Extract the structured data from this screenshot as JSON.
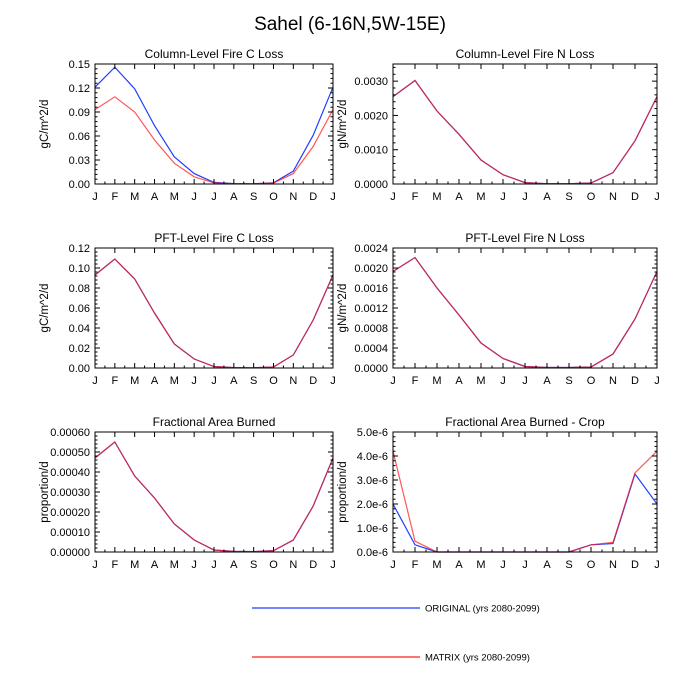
{
  "title": "Sahel (6-16N,5W-15E)",
  "colors": {
    "original": "#1f3fff",
    "matrix": "#ff1f1f",
    "axis": "#000000"
  },
  "legend": [
    {
      "label": "ORIGINAL (yrs 2080-2099)",
      "color": "#1f3fff"
    },
    {
      "label": "MATRIX (yrs 2080-2099)",
      "color": "#ff1f1f"
    }
  ],
  "chart_data": [
    {
      "type": "line",
      "title": "Column-Level Fire C Loss",
      "ylabel": "gC/m^2/d",
      "ylim": [
        0,
        0.15
      ],
      "yticks": [
        "0.00",
        "0.03",
        "0.06",
        "0.09",
        "0.12",
        "0.15"
      ],
      "categories": [
        "J",
        "F",
        "M",
        "A",
        "M",
        "J",
        "J",
        "A",
        "S",
        "O",
        "N",
        "D",
        "J"
      ],
      "series": [
        {
          "name": "ORIGINAL (yrs 2080-2099)",
          "values": [
            0.121,
            0.146,
            0.119,
            0.073,
            0.034,
            0.013,
            0.002,
            0.0005,
            0.0003,
            0.0015,
            0.016,
            0.061,
            0.121
          ]
        },
        {
          "name": "MATRIX (yrs 2080-2099)",
          "values": [
            0.093,
            0.109,
            0.09,
            0.055,
            0.026,
            0.009,
            0.0015,
            0.0004,
            0.0002,
            0.0012,
            0.013,
            0.047,
            0.093
          ]
        }
      ]
    },
    {
      "type": "line",
      "title": "Column-Level Fire N Loss",
      "ylabel": "gN/m^2/d",
      "ylim": [
        0,
        0.0035
      ],
      "yticks": [
        "0.0000",
        "0.0010",
        "0.0020",
        "0.0030"
      ],
      "categories": [
        "J",
        "F",
        "M",
        "A",
        "M",
        "J",
        "J",
        "A",
        "S",
        "O",
        "N",
        "D",
        "J"
      ],
      "series": [
        {
          "name": "ORIGINAL (yrs 2080-2099)",
          "values": [
            0.00255,
            0.00302,
            0.00213,
            0.00145,
            0.0007,
            0.00027,
            4e-05,
            1e-05,
            1e-05,
            3e-05,
            0.00033,
            0.00126,
            0.00255
          ]
        },
        {
          "name": "MATRIX (yrs 2080-2099)",
          "values": [
            0.00255,
            0.00302,
            0.00213,
            0.00145,
            0.0007,
            0.00027,
            4e-05,
            1e-05,
            1e-05,
            3e-05,
            0.00033,
            0.00126,
            0.00255
          ]
        }
      ]
    },
    {
      "type": "line",
      "title": "PFT-Level Fire C Loss",
      "ylabel": "gC/m^2/d",
      "ylim": [
        0,
        0.12
      ],
      "yticks": [
        "0.00",
        "0.02",
        "0.04",
        "0.06",
        "0.08",
        "0.10",
        "0.12"
      ],
      "categories": [
        "J",
        "F",
        "M",
        "A",
        "M",
        "J",
        "J",
        "A",
        "S",
        "O",
        "N",
        "D",
        "J"
      ],
      "series": [
        {
          "name": "ORIGINAL (yrs 2080-2099)",
          "values": [
            0.093,
            0.109,
            0.089,
            0.055,
            0.024,
            0.009,
            0.0015,
            0.0004,
            0.0002,
            0.001,
            0.013,
            0.048,
            0.093
          ]
        },
        {
          "name": "MATRIX (yrs 2080-2099)",
          "values": [
            0.093,
            0.109,
            0.089,
            0.055,
            0.024,
            0.009,
            0.0015,
            0.0004,
            0.0002,
            0.001,
            0.013,
            0.048,
            0.093
          ]
        }
      ]
    },
    {
      "type": "line",
      "title": "PFT-Level Fire N Loss",
      "ylabel": "gN/m^2/d",
      "ylim": [
        0,
        0.0024
      ],
      "yticks": [
        "0.0000",
        "0.0004",
        "0.0008",
        "0.0012",
        "0.0016",
        "0.0020",
        "0.0024"
      ],
      "categories": [
        "J",
        "F",
        "M",
        "A",
        "M",
        "J",
        "J",
        "A",
        "S",
        "O",
        "N",
        "D",
        "J"
      ],
      "series": [
        {
          "name": "ORIGINAL (yrs 2080-2099)",
          "values": [
            0.00193,
            0.00221,
            0.0016,
            0.00106,
            0.0005,
            0.00019,
            3e-05,
            1e-05,
            1e-05,
            2e-05,
            0.00028,
            0.00098,
            0.00193
          ]
        },
        {
          "name": "MATRIX (yrs 2080-2099)",
          "values": [
            0.00193,
            0.00221,
            0.0016,
            0.00106,
            0.0005,
            0.00019,
            3e-05,
            1e-05,
            1e-05,
            2e-05,
            0.00028,
            0.00098,
            0.00193
          ]
        }
      ]
    },
    {
      "type": "line",
      "title": "Fractional Area Burned",
      "ylabel": "proportion/d",
      "ylim": [
        0,
        0.0006
      ],
      "yticks": [
        "0.00000",
        "0.00010",
        "0.00020",
        "0.00030",
        "0.00040",
        "0.00050",
        "0.00060"
      ],
      "categories": [
        "J",
        "F",
        "M",
        "A",
        "M",
        "J",
        "J",
        "A",
        "S",
        "O",
        "N",
        "D",
        "J"
      ],
      "series": [
        {
          "name": "ORIGINAL (yrs 2080-2099)",
          "values": [
            0.00047,
            0.00055,
            0.00038,
            0.00027,
            0.00014,
            6e-05,
            1e-05,
            3e-06,
            2e-06,
            7e-06,
            6e-05,
            0.00023,
            0.00047
          ]
        },
        {
          "name": "MATRIX (yrs 2080-2099)",
          "values": [
            0.00047,
            0.00055,
            0.00038,
            0.00027,
            0.00014,
            6e-05,
            1e-05,
            3e-06,
            2e-06,
            7e-06,
            6e-05,
            0.00023,
            0.00047
          ]
        }
      ]
    },
    {
      "type": "line",
      "title": "Fractional Area Burned - Crop",
      "ylabel": "proportion/d",
      "ylim": [
        0,
        5e-06
      ],
      "yticks": [
        "0.0e-6",
        "1.0e-6",
        "2.0e-6",
        "3.0e-6",
        "4.0e-6",
        "5.0e-6"
      ],
      "categories": [
        "J",
        "F",
        "M",
        "A",
        "M",
        "J",
        "J",
        "A",
        "S",
        "O",
        "N",
        "D",
        "J"
      ],
      "series": [
        {
          "name": "ORIGINAL (yrs 2080-2099)",
          "values": [
            2e-06,
            3e-07,
            0,
            0,
            0,
            0,
            0,
            0,
            0,
            3e-07,
            3.5e-07,
            3.25e-06,
            2e-06
          ]
        },
        {
          "name": "MATRIX (yrs 2080-2099)",
          "values": [
            4.2e-06,
            4.5e-07,
            0,
            0,
            0,
            0,
            0,
            0,
            0,
            3e-07,
            4e-07,
            3.3e-06,
            4.2e-06
          ]
        }
      ]
    }
  ]
}
